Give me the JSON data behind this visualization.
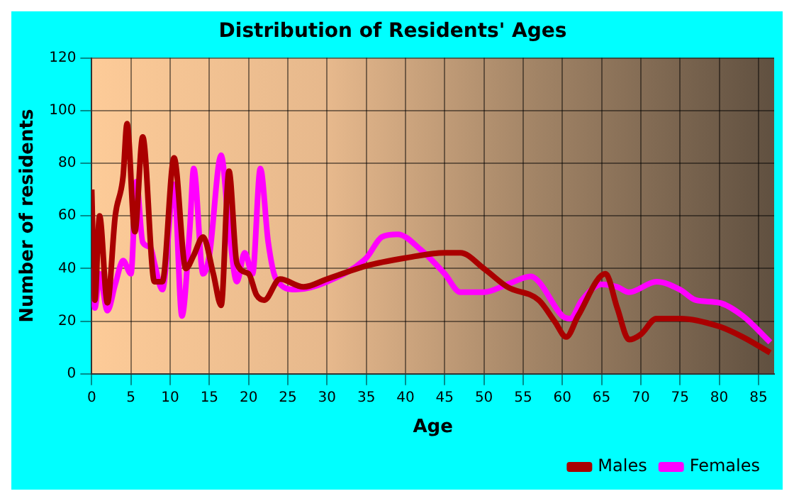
{
  "chart_data": {
    "type": "line",
    "title": "Distribution of Residents' Ages",
    "xlabel": "Age",
    "ylabel": "Number of residents",
    "xlim": [
      0,
      87
    ],
    "xticks": [
      0,
      5,
      10,
      15,
      20,
      25,
      30,
      35,
      40,
      45,
      50,
      55,
      60,
      65,
      70,
      75,
      80,
      85
    ],
    "ylim": [
      0,
      120
    ],
    "yticks": [
      0,
      20,
      40,
      60,
      80,
      100,
      120
    ],
    "grid": true,
    "legend": "bottom right",
    "marker": "none",
    "line_style": "solid",
    "series": [
      {
        "name": "Males",
        "color": "#aa0000",
        "x": [
          0,
          0.4,
          1,
          2,
          3,
          4,
          4.5,
          5.5,
          6.5,
          8,
          9,
          10.5,
          12,
          13,
          14.2,
          15.5,
          16.5,
          17.5,
          18.5,
          20,
          21,
          22,
          24,
          27,
          30,
          35,
          40,
          45,
          47,
          50,
          53,
          57,
          59,
          60.5,
          62,
          65.5,
          67,
          68.5,
          70,
          72,
          75,
          80,
          83,
          86.5
        ],
        "values": [
          70,
          28,
          60,
          27,
          60,
          75,
          95,
          54,
          90,
          35,
          35,
          82,
          40,
          45,
          52,
          38,
          26,
          77,
          42,
          38,
          30,
          28,
          36,
          33,
          36,
          41,
          44,
          46,
          46,
          40,
          33,
          28,
          20,
          14,
          22,
          38,
          25,
          13,
          15,
          21,
          21,
          18,
          14,
          8
        ]
      },
      {
        "name": "Females",
        "color": "#ff00ff",
        "x": [
          0,
          0.4,
          1,
          2,
          3,
          4,
          5,
          5.7,
          6.5,
          7.5,
          8,
          9,
          10.5,
          11.5,
          12.5,
          13,
          14.2,
          15,
          16.5,
          17.5,
          18.5,
          19.5,
          20.5,
          21.5,
          22.5,
          23.5,
          26,
          30,
          35,
          37,
          39,
          42,
          45,
          47,
          50,
          53,
          56,
          57,
          60,
          61,
          62.5,
          65,
          67,
          68.5,
          72,
          75,
          77,
          80,
          83,
          86.5
        ],
        "values": [
          40,
          25,
          38,
          24,
          34,
          43,
          38,
          73,
          50,
          48,
          42,
          32,
          72,
          22,
          55,
          78,
          38,
          45,
          83,
          55,
          35,
          46,
          38,
          78,
          50,
          36,
          32,
          35,
          44,
          52,
          53,
          47,
          38,
          31,
          31,
          34,
          37,
          35,
          22,
          21,
          28,
          34,
          33,
          31,
          35,
          32,
          28,
          27,
          22,
          12
        ]
      }
    ]
  }
}
